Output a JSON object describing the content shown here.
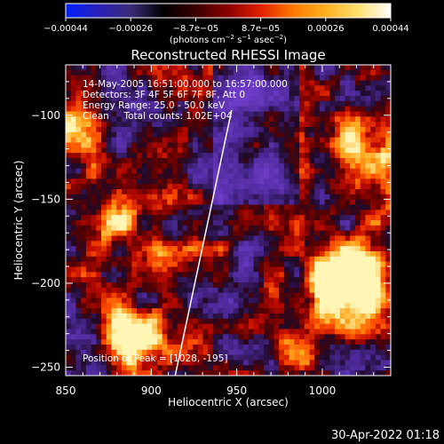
{
  "chart_data": {
    "type": "heatmap",
    "title": "Reconstructed RHESSI Image",
    "xlabel": "Heliocentric X (arcsec)",
    "ylabel": "Heliocentric Y (arcsec)",
    "xlim": [
      850,
      1040
    ],
    "ylim": [
      -255,
      -70
    ],
    "x_ticks": [
      850,
      900,
      950,
      1000
    ],
    "x_tick_labels": [
      "850",
      "900",
      "950",
      "1000"
    ],
    "y_ticks": [
      -100,
      -150,
      -200,
      -250
    ],
    "y_tick_labels": [
      "−100",
      "−150",
      "−200",
      "−250"
    ],
    "colorbar": {
      "range": [
        -0.00044,
        0.00044
      ],
      "tick_labels": [
        "−0.00044",
        "−0.00026",
        "−8.7e−05",
        "8.7e−05",
        "0.00026",
        "0.00044"
      ],
      "unit_prefix": "(photons cm",
      "unit_exp1": "−2",
      "unit_mid": " s",
      "unit_exp2": "−1",
      "unit_mid2": " asec",
      "unit_exp3": "−2",
      "unit_suffix": ")",
      "colors": [
        "#0022ff",
        "#2a1fb8",
        "#3c2c78",
        "#000000",
        "#3a0000",
        "#8c0000",
        "#e02000",
        "#ff7a00",
        "#ffb020",
        "#ffe070",
        "#ffffff"
      ]
    },
    "annotations": [
      "14-May-2005 16:51:00.000 to 16:57:00.000",
      "Detectors: 3F 4F 5F 6F 7F 8F, Att 0",
      "Energy Range: 25.0 - 50.0 keV",
      "Clean     Total counts: 1.02E+04"
    ],
    "peak_label": "Position of Peak = [1028, -195]",
    "limb_line": {
      "x": [
        947,
        914
      ],
      "y": [
        -97,
        -255
      ]
    },
    "grid": false
  },
  "footer": {
    "timestamp": "30-Apr-2022 01:18"
  }
}
